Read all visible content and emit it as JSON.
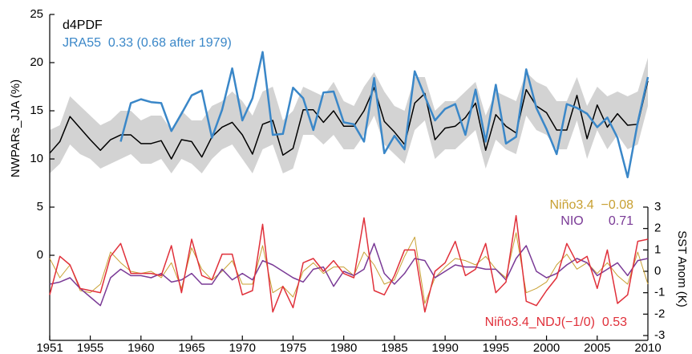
{
  "chart_data": {
    "type": "line",
    "y_label": "NWPARs_JJA (%)",
    "y2_label": "SST Anom (K)",
    "x": [
      1951,
      1952,
      1953,
      1954,
      1955,
      1956,
      1957,
      1958,
      1959,
      1960,
      1961,
      1962,
      1963,
      1964,
      1965,
      1966,
      1967,
      1968,
      1969,
      1970,
      1971,
      1972,
      1973,
      1974,
      1975,
      1976,
      1977,
      1978,
      1979,
      1980,
      1981,
      1982,
      1983,
      1984,
      1985,
      1986,
      1987,
      1988,
      1989,
      1990,
      1991,
      1992,
      1993,
      1994,
      1995,
      1996,
      1997,
      1998,
      1999,
      2000,
      2001,
      2002,
      2003,
      2004,
      2005,
      2006,
      2007,
      2008,
      2009,
      2010
    ],
    "xlim": [
      1951,
      2010
    ],
    "xticks": [
      1951,
      1955,
      1960,
      1965,
      1970,
      1975,
      1980,
      1985,
      1990,
      1995,
      2000,
      2005,
      2010
    ],
    "ylim": [
      -8.83,
      25
    ],
    "yticks": [
      0,
      5,
      10,
      15,
      20,
      25
    ],
    "y2lim": [
      -3.225,
      12
    ],
    "y2ticks": [
      -3,
      -2,
      -1,
      0,
      1,
      2,
      3
    ],
    "band": {
      "color": "#d3d3d3",
      "upper": [
        13.0,
        13.5,
        16.5,
        15.5,
        14.5,
        13.5,
        14.0,
        15.0,
        15.0,
        14.0,
        14.5,
        14.5,
        13.0,
        15.0,
        14.0,
        14.0,
        15.5,
        16.0,
        17.0,
        16.0,
        14.5,
        17.0,
        17.5,
        14.0,
        15.0,
        17.5,
        17.0,
        16.5,
        18.0,
        16.0,
        15.5,
        17.5,
        19.0,
        17.0,
        15.5,
        15.0,
        18.5,
        18.5,
        15.0,
        16.0,
        16.0,
        17.0,
        18.0,
        14.5,
        17.0,
        16.5,
        16.0,
        19.0,
        18.0,
        17.5,
        16.0,
        16.0,
        18.5,
        15.5,
        17.5,
        16.5,
        17.0,
        16.5,
        17.0,
        20.5
      ],
      "lower": [
        8.5,
        9.5,
        11.5,
        10.5,
        10.0,
        9.0,
        9.5,
        10.0,
        10.5,
        9.5,
        9.5,
        10.0,
        8.5,
        10.0,
        9.5,
        8.5,
        10.0,
        11.0,
        11.5,
        10.0,
        8.5,
        11.0,
        11.5,
        8.5,
        9.0,
        12.5,
        12.5,
        11.5,
        12.5,
        11.0,
        11.0,
        12.5,
        14.5,
        11.5,
        10.5,
        9.5,
        13.0,
        14.0,
        10.0,
        11.0,
        11.0,
        12.0,
        13.0,
        9.0,
        12.0,
        11.0,
        10.5,
        14.5,
        13.0,
        12.5,
        11.0,
        11.0,
        14.0,
        10.0,
        13.0,
        11.0,
        12.5,
        11.0,
        11.5,
        15.5
      ]
    },
    "series": [
      {
        "name": "d4PDF",
        "color": "#000000",
        "width": 1.5,
        "values": [
          10.6,
          11.8,
          14.4,
          13.2,
          12.0,
          10.9,
          12.0,
          12.5,
          12.5,
          11.6,
          11.6,
          11.9,
          10.0,
          12.0,
          11.8,
          10.2,
          12.3,
          13.3,
          13.8,
          12.5,
          10.5,
          13.6,
          14.0,
          10.4,
          11.1,
          15.1,
          15.1,
          13.8,
          15.0,
          13.4,
          13.4,
          15.0,
          17.4,
          13.9,
          12.8,
          11.5,
          15.8,
          16.8,
          12.0,
          13.2,
          13.4,
          14.3,
          15.8,
          10.9,
          14.6,
          13.4,
          12.7,
          17.2,
          15.5,
          14.8,
          13.0,
          13.0,
          16.6,
          12.1,
          15.6,
          13.3,
          14.7,
          13.5,
          13.6,
          18.1
        ]
      },
      {
        "name": "JRA55  0.33 (0.68 after 1979)",
        "color": "#3a87c8",
        "width": 2.5,
        "values": [
          null,
          null,
          null,
          null,
          null,
          null,
          null,
          11.8,
          15.8,
          16.2,
          15.9,
          15.8,
          12.9,
          14.7,
          16.6,
          17.1,
          12.2,
          15.1,
          19.4,
          14.0,
          16.3,
          21.1,
          12.5,
          12.6,
          17.4,
          16.3,
          13.0,
          16.9,
          17.0,
          13.8,
          13.6,
          11.8,
          18.4,
          10.6,
          12.4,
          11.0,
          19.1,
          16.5,
          14.0,
          15.2,
          15.7,
          12.5,
          17.2,
          11.8,
          17.7,
          11.6,
          12.3,
          19.3,
          15.3,
          13.1,
          10.5,
          15.7,
          15.3,
          14.7,
          13.3,
          14.3,
          12.2,
          8.1,
          13.8,
          18.5
        ]
      },
      {
        "name": "Niño3.4  −0.08",
        "color": "#c8a032",
        "width": 1,
        "axis": "y2",
        "values": [
          0.6,
          -0.3,
          0.3,
          -0.9,
          -1.0,
          -0.6,
          0.9,
          0.4,
          0.0,
          -0.1,
          0.0,
          -0.3,
          0.4,
          -0.8,
          1.1,
          0.1,
          -0.4,
          0.0,
          0.5,
          -0.6,
          -0.6,
          1.2,
          -1.0,
          -0.7,
          -1.2,
          0.0,
          0.4,
          -0.1,
          0.2,
          0.2,
          -0.2,
          0.9,
          0.3,
          -0.6,
          -0.4,
          0.7,
          1.6,
          -1.5,
          -0.3,
          0.2,
          0.6,
          0.5,
          0.3,
          0.7,
          0.1,
          -0.3,
          1.8,
          -1.0,
          -0.8,
          -0.5,
          0.3,
          0.8,
          0.1,
          0.4,
          -0.1,
          0.4,
          -0.2,
          -0.6,
          0.9,
          -0.6
        ]
      },
      {
        "name": "NIO       0.71",
        "color": "#7a3a96",
        "width": 1.5,
        "axis": "y2",
        "values": [
          -0.6,
          -0.5,
          -0.3,
          -0.8,
          -1.2,
          -1.6,
          -0.3,
          0.1,
          -0.2,
          -0.2,
          -0.3,
          -0.1,
          -0.5,
          -0.4,
          -0.1,
          -0.6,
          -0.6,
          0.1,
          -0.4,
          -0.1,
          -0.4,
          0.5,
          0.3,
          0.0,
          -0.3,
          -0.5,
          0.1,
          0.2,
          -0.7,
          0.0,
          -0.2,
          0.1,
          1.3,
          -0.1,
          -0.6,
          -0.1,
          0.6,
          0.5,
          -0.3,
          0.0,
          0.3,
          0.2,
          0.2,
          0.1,
          0.1,
          -0.4,
          0.6,
          1.2,
          0.0,
          -0.3,
          -0.1,
          0.3,
          0.6,
          0.4,
          -0.2,
          0.1,
          0.4,
          -0.2,
          0.5,
          0.6
        ]
      },
      {
        "name": "Niño3.4_NDJ(−1/0)  0.53",
        "color": "#e0303a",
        "width": 1.5,
        "axis": "y2",
        "values": [
          -1.1,
          0.7,
          0.3,
          -0.8,
          -0.9,
          -1.0,
          0.7,
          1.3,
          -0.1,
          -0.1,
          -0.1,
          -0.2,
          1.2,
          -1.0,
          1.5,
          -0.2,
          -0.4,
          0.8,
          0.8,
          -1.1,
          -0.9,
          2.2,
          -1.9,
          -0.7,
          -1.7,
          0.4,
          0.6,
          0.0,
          0.5,
          -0.1,
          -0.3,
          2.5,
          -0.9,
          -1.1,
          -0.2,
          1.0,
          1.0,
          -1.9,
          0.0,
          0.4,
          1.4,
          -0.2,
          0.1,
          1.3,
          -1.0,
          -0.5,
          2.6,
          -1.4,
          -1.6,
          -0.9,
          -0.3,
          1.3,
          0.4,
          0.7,
          -0.8,
          1.0,
          -1.5,
          -1.1,
          1.4,
          1.5
        ]
      }
    ]
  }
}
